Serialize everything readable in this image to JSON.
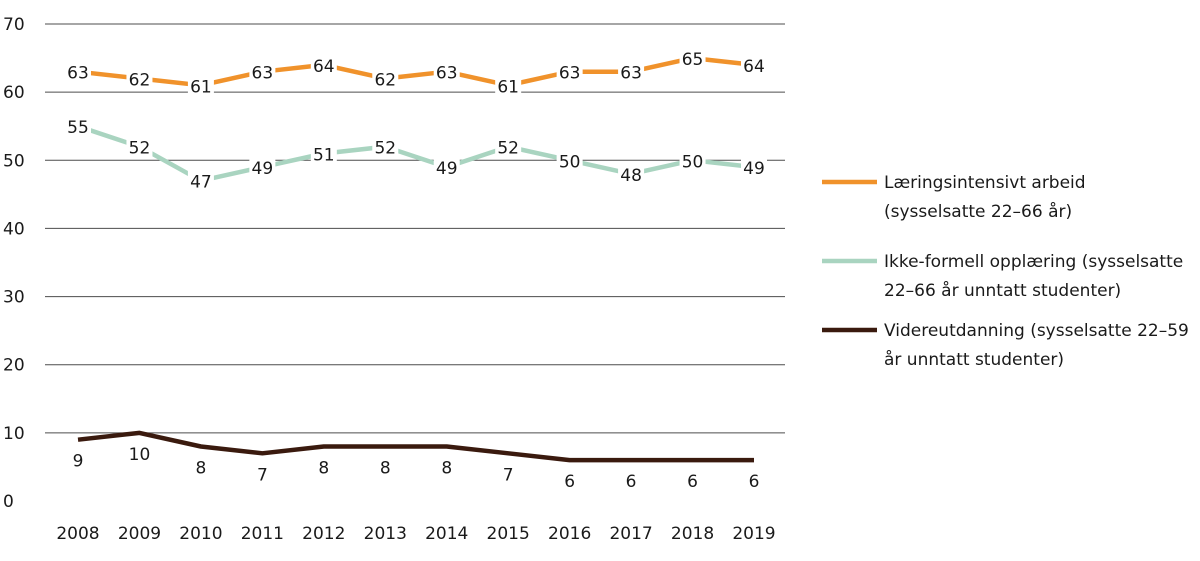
{
  "chart_data": {
    "type": "line",
    "title": "",
    "xlabel": "",
    "ylabel": "",
    "x": [
      "2008",
      "2009",
      "2010",
      "2011",
      "2012",
      "2013",
      "2014",
      "2015",
      "2016",
      "2017",
      "2018",
      "2019"
    ],
    "ylim": [
      0,
      70
    ],
    "yticks": [
      0,
      10,
      20,
      30,
      40,
      50,
      60,
      70
    ],
    "grid": true,
    "legend_position": "right",
    "series": [
      {
        "name": "Læringsintensivt arbeid (sysselsatte 22–66 år)",
        "legend_lines": [
          "Læringsintensivt arbeid",
          "(sysselsatte 22–66 år)"
        ],
        "color": "#f0922b",
        "values": [
          63,
          62,
          61,
          63,
          64,
          62,
          63,
          61,
          63,
          63,
          65,
          64
        ],
        "label_position": "on"
      },
      {
        "name": "Ikke-formell opplæring (sysselsatte 22–66 år unntatt studenter)",
        "legend_lines": [
          "Ikke-formell opplæring (sysselsatte",
          "22–66 år unntatt studenter)"
        ],
        "color": "#a9d4c0",
        "values": [
          55,
          52,
          47,
          49,
          51,
          52,
          49,
          52,
          50,
          48,
          50,
          49
        ],
        "label_position": "on"
      },
      {
        "name": "Videreutdanning (sysselsatte 22–59 år unntatt studenter)",
        "legend_lines": [
          "Videreutdanning (sysselsatte 22–59",
          "år unntatt studenter)"
        ],
        "color": "#3a1a0e",
        "values": [
          9,
          10,
          8,
          7,
          8,
          8,
          8,
          7,
          6,
          6,
          6,
          6
        ],
        "label_position": "below"
      }
    ]
  }
}
